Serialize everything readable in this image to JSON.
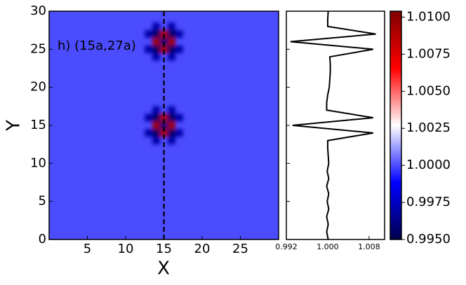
{
  "chart_data": [
    {
      "type": "heatmap",
      "xlabel": "X",
      "ylabel": "Y",
      "annotation": "h) (15a,27a)",
      "xlim": [
        0,
        30
      ],
      "ylim": [
        0,
        30
      ],
      "xticks": [
        5,
        10,
        15,
        20,
        25
      ],
      "yticks": [
        0,
        5,
        10,
        15,
        20,
        25,
        30
      ],
      "cut_x": 15,
      "background": 1.0,
      "colormap": "seismic",
      "clim": [
        0.995,
        1.0104
      ],
      "cticks": [
        {
          "value": 0.995,
          "label": "0.9950"
        },
        0.9975,
        {
          "value": 1.0,
          "label": "1.0000"
        },
        1.0025,
        {
          "value": 1.005,
          "label": "1.0050"
        },
        1.0075,
        {
          "value": 1.01,
          "label": "1.0100"
        }
      ],
      "cells": [
        {
          "x": 14,
          "y": 15,
          "value": 1.0095
        },
        {
          "x": 16,
          "y": 15,
          "value": 1.0095
        },
        {
          "x": 15,
          "y": 14,
          "value": 1.0092
        },
        {
          "x": 15,
          "y": 16,
          "value": 1.0092
        },
        {
          "x": 15,
          "y": 15,
          "value": 0.996
        },
        {
          "x": 14,
          "y": 14,
          "value": 0.9955
        },
        {
          "x": 16,
          "y": 14,
          "value": 0.9955
        },
        {
          "x": 14,
          "y": 16,
          "value": 0.9955
        },
        {
          "x": 16,
          "y": 16,
          "value": 0.9955
        },
        {
          "x": 13,
          "y": 14,
          "value": 0.997
        },
        {
          "x": 17,
          "y": 14,
          "value": 0.997
        },
        {
          "x": 13,
          "y": 16,
          "value": 0.997
        },
        {
          "x": 17,
          "y": 16,
          "value": 0.997
        },
        {
          "x": 14,
          "y": 13,
          "value": 0.997
        },
        {
          "x": 16,
          "y": 13,
          "value": 0.997
        },
        {
          "x": 14,
          "y": 17,
          "value": 0.997
        },
        {
          "x": 16,
          "y": 17,
          "value": 0.997
        },
        {
          "x": 14,
          "y": 26,
          "value": 1.0095
        },
        {
          "x": 16,
          "y": 26,
          "value": 1.0095
        },
        {
          "x": 15,
          "y": 25,
          "value": 1.0092
        },
        {
          "x": 15,
          "y": 27,
          "value": 1.0092
        },
        {
          "x": 15,
          "y": 26,
          "value": 0.996
        },
        {
          "x": 14,
          "y": 25,
          "value": 0.9955
        },
        {
          "x": 16,
          "y": 25,
          "value": 0.9955
        },
        {
          "x": 14,
          "y": 27,
          "value": 0.9955
        },
        {
          "x": 16,
          "y": 27,
          "value": 0.9955
        },
        {
          "x": 13,
          "y": 25,
          "value": 0.997
        },
        {
          "x": 17,
          "y": 25,
          "value": 0.997
        },
        {
          "x": 13,
          "y": 27,
          "value": 0.997
        },
        {
          "x": 17,
          "y": 27,
          "value": 0.997
        },
        {
          "x": 14,
          "y": 24,
          "value": 0.997
        },
        {
          "x": 16,
          "y": 24,
          "value": 0.997
        },
        {
          "x": 14,
          "y": 28,
          "value": 0.997
        },
        {
          "x": 16,
          "y": 28,
          "value": 0.997
        }
      ]
    },
    {
      "type": "line",
      "color": "#000000",
      "xlim": [
        0.992,
        1.011
      ],
      "xticks": [
        0.992,
        {
          "value": 1.0,
          "label": "1.000"
        },
        1.008
      ],
      "ylim": [
        0,
        30
      ],
      "y": [
        0,
        1,
        2,
        3,
        4,
        5,
        6,
        7,
        8,
        9,
        10,
        11,
        12,
        13,
        14,
        15,
        16,
        17,
        18,
        19,
        20,
        21,
        22,
        23,
        24,
        25,
        26,
        27,
        28,
        29,
        30
      ],
      "values": [
        1.0001,
        0.9998,
        1.0001,
        0.9998,
        1.0002,
        0.9999,
        1.0002,
        0.9998,
        1.0002,
        0.9999,
        1.0002,
        1.0001,
        1.0,
        1.0,
        1.0088,
        0.9932,
        1.0088,
        0.9998,
        0.9998,
        1.0,
        1.0003,
        1.0004,
        1.0005,
        1.0005,
        1.0004,
        1.0088,
        0.9928,
        1.0093,
        1.0,
        1.0,
        1.0001
      ]
    }
  ]
}
